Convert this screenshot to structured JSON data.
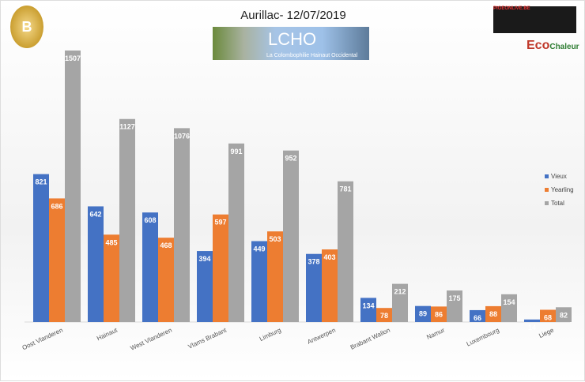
{
  "header": {
    "title": "Aurillac- 12/07/2019",
    "banner_title": "LCHO",
    "banner_subtitle": "La Colombophilie Hainaut Occidental",
    "sponsor_top": "PIGEONLIVE.BE",
    "sponsor_eco": "Eco",
    "sponsor_eco2": "Chaleur",
    "logo_letter": "B"
  },
  "chart_data": {
    "type": "bar",
    "title": "Aurillac- 12/07/2019",
    "xlabel": "",
    "ylabel": "",
    "ylim": [
      0,
      1507
    ],
    "grid": false,
    "legend": "right",
    "categories": [
      "Oost Vlanderen",
      "Hainaut",
      "West Vlanderen",
      "Vlams Brabant",
      "Limburg",
      "Antwerpen",
      "Brabant Wallon",
      "Namur",
      "Luxembourg",
      "Liege"
    ],
    "series": [
      {
        "name": "Vieux",
        "color": "#4472c4",
        "values": [
          821,
          642,
          608,
          394,
          449,
          378,
          134,
          89,
          66,
          14
        ]
      },
      {
        "name": "Yearling",
        "color": "#ed7d31",
        "values": [
          686,
          485,
          468,
          597,
          503,
          403,
          78,
          86,
          88,
          68
        ]
      },
      {
        "name": "Total",
        "color": "#a5a5a5",
        "values": [
          1507,
          1127,
          1076,
          991,
          952,
          781,
          212,
          175,
          154,
          82
        ]
      }
    ]
  }
}
